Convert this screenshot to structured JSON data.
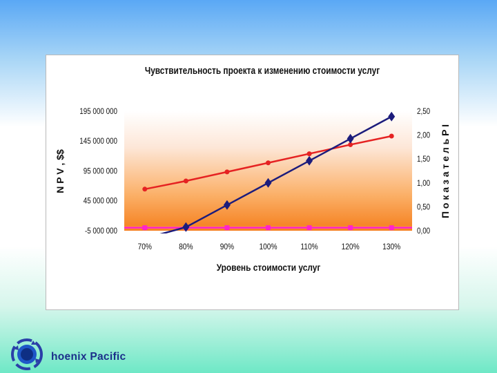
{
  "brand": {
    "text": "hoenix Pacific"
  },
  "colors": {
    "npv_line": "#1c1c7c",
    "pi_line": "#e52222",
    "base_line": "#ff22cc",
    "axis_text": "#111111"
  },
  "chart_data": {
    "type": "line",
    "title": "Чувствительность проекта к изменению стоимости услуг",
    "xlabel": "Уровень стоимости услуг",
    "ylabel": "N P V , $$",
    "y2label": "П о к а з а т е л ь  P I",
    "categories": [
      "70%",
      "80%",
      "90%",
      "100%",
      "110%",
      "120%",
      "130%"
    ],
    "y_ticks": [
      "195 000 000",
      "145 000 000",
      "95 000 000",
      "45 000 000",
      "-5 000 000"
    ],
    "y_tick_values": [
      195000000,
      145000000,
      95000000,
      45000000,
      -5000000
    ],
    "y2_ticks": [
      "2,50",
      "2,00",
      "1,50",
      "1,00",
      "0,50",
      "0,00"
    ],
    "y2_tick_values": [
      2.5,
      2.0,
      1.5,
      1.0,
      0.5,
      0.0
    ],
    "ylim": [
      -5000000,
      195000000
    ],
    "y2lim": [
      0,
      2.5
    ],
    "grid": false,
    "series": [
      {
        "axis": "left",
        "marker": "diamond",
        "values": [
          -18000000,
          1000000,
          38000000,
          75000000,
          112000000,
          149000000,
          186000000
        ]
      },
      {
        "axis": "right",
        "marker": "circle",
        "values": [
          0.87,
          1.04,
          1.23,
          1.42,
          1.61,
          1.8,
          1.98
        ]
      },
      {
        "axis": "left",
        "marker": "square",
        "values": [
          0,
          0,
          0,
          0,
          0,
          0,
          0
        ]
      }
    ]
  }
}
